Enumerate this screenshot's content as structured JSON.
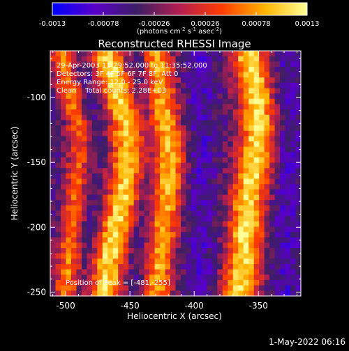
{
  "colorbar": {
    "tick_labels": [
      "-0.0013",
      "-0.00078",
      "-0.00026",
      "0.00026",
      "0.00078",
      "0.0013"
    ],
    "min": -0.0013,
    "max": 0.0013,
    "units_prefix": "(photons cm",
    "units_exp1": "-2",
    "units_mid1": " s",
    "units_exp2": "-1",
    "units_mid2": " asec",
    "units_exp3": "-2",
    "units_suffix": ")"
  },
  "footer": {
    "timestamp": "1-May-2022 06:16"
  },
  "chart_data": {
    "type": "heatmap",
    "title": "Reconstructed RHESSI Image",
    "xlabel": "Heliocentric X (arcsec)",
    "ylabel": "Heliocentric Y (arcsec)",
    "xlim": [
      -512,
      -317
    ],
    "ylim": [
      -253,
      -64
    ],
    "xticks": [
      -500,
      -450,
      -400,
      -350
    ],
    "yticks": [
      -100,
      -150,
      -200,
      -250
    ],
    "xtick_labels": [
      "-500",
      "-450",
      "-400",
      "-350"
    ],
    "ytick_labels": [
      "-100",
      "-150",
      "-200",
      "-250"
    ],
    "annotations": [
      "29-Apr-2003 11:29:52.000 to 11:35:52.000",
      "Detectors: 3F 4F 5F 6F 7F 8F, Att 0",
      "Energy Range: 12.0 - 25.0 keV",
      "Clean    Total counts: 2.28E+03"
    ],
    "peak_label": "Position of Peak = [-481,-255]",
    "peak_x": -481,
    "peak_y": -255,
    "colormap": [
      "#0000ff",
      "#5a00c8",
      "#3c1e64",
      "#b41e50",
      "#ff3c00",
      "#ffb400",
      "#ffff96"
    ],
    "ridges": [
      {
        "center_x": [
          -470,
          -468,
          -462,
          -455,
          -452,
          -450,
          -452,
          -458,
          -465,
          -470
        ],
        "y": [
          -253,
          -230,
          -205,
          -180,
          -160,
          -140,
          -120,
          -100,
          -80,
          -64
        ],
        "width": 14,
        "amp": 1.0
      },
      {
        "center_x": [
          -430,
          -428,
          -425,
          -422,
          -420,
          -418,
          -422,
          -425,
          -428,
          -430
        ],
        "y": [
          -253,
          -230,
          -205,
          -180,
          -160,
          -140,
          -120,
          -100,
          -80,
          -64
        ],
        "width": 12,
        "amp": 0.85
      },
      {
        "center_x": [
          -365,
          -362,
          -360,
          -358,
          -355,
          -352,
          -350,
          -352,
          -355,
          -358
        ],
        "y": [
          -253,
          -230,
          -205,
          -180,
          -160,
          -140,
          -120,
          -100,
          -80,
          -64
        ],
        "width": 14,
        "amp": 1.0
      },
      {
        "center_x": [
          -500,
          -498,
          -495,
          -492,
          -490,
          -488,
          -490,
          -495,
          -500,
          -505
        ],
        "y": [
          -253,
          -230,
          -205,
          -180,
          -160,
          -140,
          -120,
          -100,
          -80,
          -64
        ],
        "width": 10,
        "amp": 0.7
      }
    ]
  }
}
